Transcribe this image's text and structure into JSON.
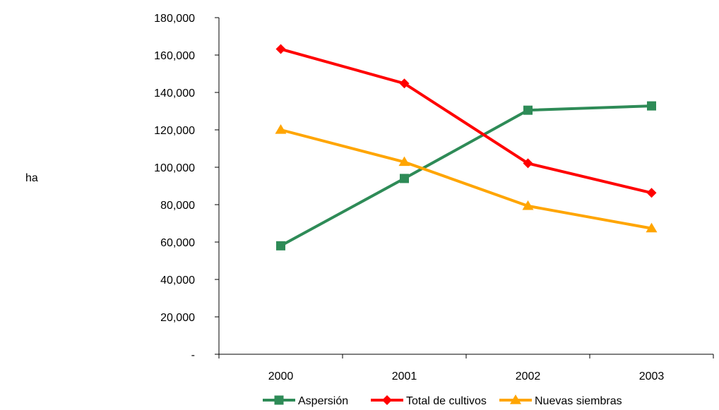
{
  "chart_data": {
    "type": "line",
    "title": "",
    "xlabel": "",
    "ylabel": "ha",
    "x": [
      "2000",
      "2001",
      "2002",
      "2003"
    ],
    "ylim": [
      0,
      180000
    ],
    "y_ticks": [
      0,
      20000,
      40000,
      60000,
      80000,
      100000,
      120000,
      140000,
      160000,
      180000
    ],
    "y_tick_labels": [
      "-",
      "20,000",
      "40,000",
      "60,000",
      "80,000",
      "100,000",
      "120,000",
      "140,000",
      "160,000",
      "180,000"
    ],
    "grid": false,
    "legend_position": "bottom",
    "series": [
      {
        "name": "Aspersión",
        "values": [
          58000,
          94000,
          130500,
          132800
        ],
        "color": "#2e8b57",
        "marker": "square"
      },
      {
        "name": "Total de cultivos",
        "values": [
          163200,
          144800,
          102100,
          86300
        ],
        "color": "#ff0000",
        "marker": "diamond"
      },
      {
        "name": "Nuevas siembras",
        "values": [
          120000,
          102800,
          79300,
          67300
        ],
        "color": "#ffa500",
        "marker": "triangle"
      }
    ]
  }
}
